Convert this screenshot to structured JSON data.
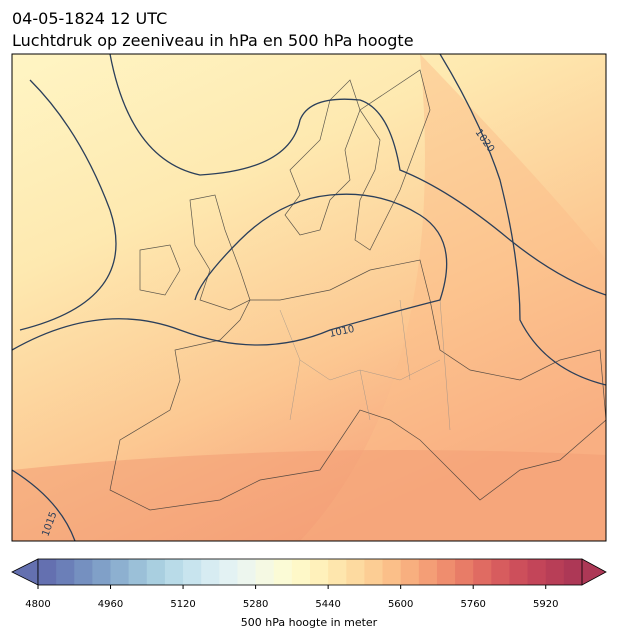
{
  "header": {
    "title": "04-05-1824 12 UTC",
    "subtitle": "Luchtdruk op zeeniveau in hPa en 500 hPa hoogte"
  },
  "map": {
    "isobar_labels": [
      1020,
      1010,
      1015
    ]
  },
  "colorbar": {
    "lim": [
      4800,
      6000
    ],
    "ticks": [
      4800,
      4960,
      5120,
      5280,
      5440,
      5600,
      5760,
      5920
    ],
    "label": "500 hPa hoogte in meter",
    "colors": [
      "#6470b0",
      "#6b7fb8",
      "#7590c0",
      "#80a0c8",
      "#8db0d0",
      "#9bc0d8",
      "#a9cfe0",
      "#b9dbe8",
      "#c8e4ee",
      "#d7ecf2",
      "#e3f2f3",
      "#edf6ee",
      "#f5f9e3",
      "#fbfbd6",
      "#fef8c8",
      "#fff1bb",
      "#fee6ad",
      "#fddaa0",
      "#fccd94",
      "#fbbf89",
      "#f8af7f",
      "#f49e76",
      "#ef8d6e",
      "#e87c67",
      "#e06b62",
      "#d75c5e",
      "#cd4f5b",
      "#c34559",
      "#b83e57",
      "#ad3856"
    ]
  }
}
